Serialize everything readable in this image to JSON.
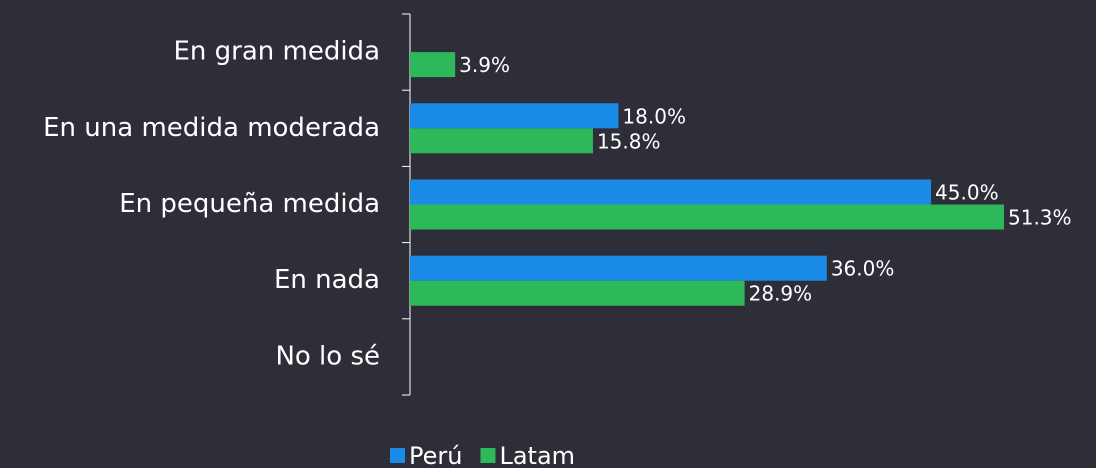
{
  "chart_data": {
    "type": "bar",
    "orientation": "horizontal",
    "categories": [
      "En gran medida",
      "En una medida moderada",
      "En pequeña medida",
      "En nada",
      "No lo sé"
    ],
    "series": [
      {
        "name": "Perú",
        "color": "#1a8ce8",
        "values": [
          null,
          18.0,
          45.0,
          36.0,
          null
        ],
        "value_labels": [
          null,
          "18.0%",
          "45.0%",
          "36.0%",
          null
        ]
      },
      {
        "name": "Latam",
        "color": "#2db85a",
        "values": [
          3.9,
          15.8,
          51.3,
          28.9,
          null
        ],
        "value_labels": [
          "3.9%",
          "15.8%",
          "51.3%",
          "28.9%",
          null
        ]
      }
    ],
    "legend": "bottom"
  }
}
